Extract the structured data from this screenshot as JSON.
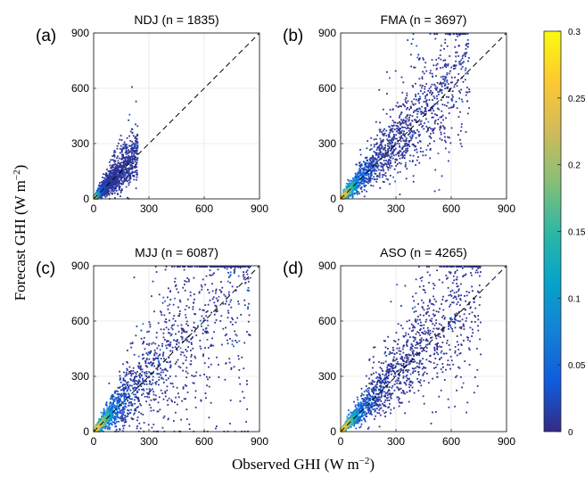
{
  "figure": {
    "ylabel": "Forecast GHI (W m",
    "ylabel_sup": "−2",
    "ylabel_tail": ")",
    "xlabel": "Observed GHI (W m",
    "xlabel_sup": "−2",
    "xlabel_tail": ")"
  },
  "colorbar": {
    "ticks": [
      "0",
      "0.05",
      "0.1",
      "0.15",
      "0.2",
      "0.25",
      "0.3"
    ],
    "range": [
      0,
      0.3
    ],
    "colormap": "parula",
    "colors": [
      "#352a87",
      "#0f5cdd",
      "#1481d6",
      "#06a4ca",
      "#2eb7a4",
      "#87bf77",
      "#d1bb59",
      "#fec832",
      "#f9fb0e"
    ]
  },
  "chart_data": [
    {
      "type": "scatter",
      "panel_label": "(a)",
      "title": "NDJ (n = 1835)",
      "n": 1835,
      "xlim": [
        0,
        900
      ],
      "ylim": [
        0,
        900
      ],
      "xticks": [
        "0",
        "300",
        "600",
        "900"
      ],
      "yticks": [
        "0",
        "300",
        "600",
        "900"
      ],
      "reference_line": "y = x (dashed)",
      "grid": true,
      "observed_max": 240,
      "scatter_spread": 0.35
    },
    {
      "type": "scatter",
      "panel_label": "(b)",
      "title": "FMA (n = 3697)",
      "n": 3697,
      "xlim": [
        0,
        900
      ],
      "ylim": [
        0,
        900
      ],
      "xticks": [
        "0",
        "300",
        "600",
        "900"
      ],
      "yticks": [
        "0",
        "300",
        "600",
        "900"
      ],
      "reference_line": "y = x (dashed)",
      "grid": true,
      "observed_max": 700,
      "scatter_spread": 0.3
    },
    {
      "type": "scatter",
      "panel_label": "(c)",
      "title": "MJJ (n = 6087)",
      "n": 6087,
      "xlim": [
        0,
        900
      ],
      "ylim": [
        0,
        900
      ],
      "xticks": [
        "0",
        "300",
        "600",
        "900"
      ],
      "yticks": [
        "0",
        "300",
        "600",
        "900"
      ],
      "reference_line": "y = x (dashed)",
      "grid": true,
      "observed_max": 850,
      "scatter_spread": 0.45
    },
    {
      "type": "scatter",
      "panel_label": "(d)",
      "title": "ASO (n = 4265)",
      "n": 4265,
      "xlim": [
        0,
        900
      ],
      "ylim": [
        0,
        900
      ],
      "xticks": [
        "0",
        "300",
        "600",
        "900"
      ],
      "yticks": [
        "0",
        "300",
        "600",
        "900"
      ],
      "reference_line": "y = x (dashed)",
      "grid": true,
      "observed_max": 760,
      "scatter_spread": 0.32
    }
  ]
}
